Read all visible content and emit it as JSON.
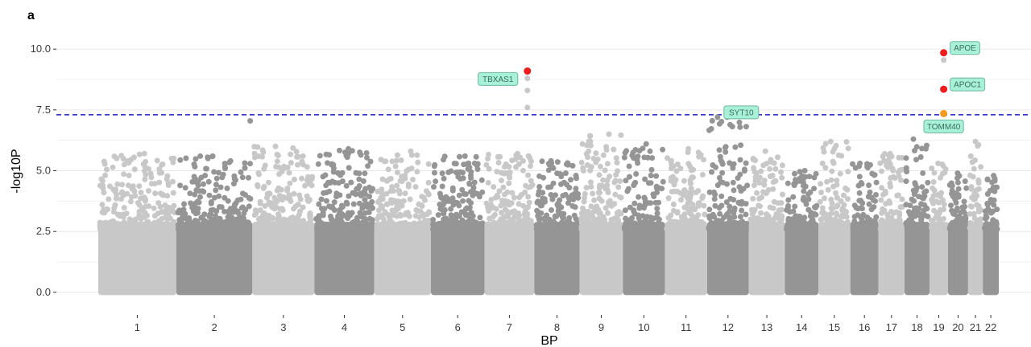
{
  "panel_label": "a",
  "colors": {
    "chrom_odd": "#c8c8c8",
    "chrom_even": "#959595",
    "significant": "#ee1c1c",
    "suggestive": "#f59a1e",
    "threshold_line": "#1f1fc8",
    "label_fill": "#a8f0d8",
    "label_stroke": "#6fb89c",
    "gridline": "#e6e6e6"
  },
  "chart_data": {
    "type": "scatter",
    "title": "",
    "xlabel": "BP",
    "ylabel": "-log10P",
    "ylim": [
      -0.3,
      10.5
    ],
    "y_ticks": [
      0.0,
      2.5,
      5.0,
      7.5,
      10.0
    ],
    "y_tick_labels": [
      "0.0",
      "2.5",
      "5.0",
      "7.5",
      "10.0"
    ],
    "grid": true,
    "legend": "none",
    "significance_threshold": 7.3,
    "chromosomes": [
      {
        "label": "1",
        "length": 249
      },
      {
        "label": "2",
        "length": 243
      },
      {
        "label": "3",
        "length": 198
      },
      {
        "label": "4",
        "length": 191
      },
      {
        "label": "5",
        "length": 181
      },
      {
        "label": "6",
        "length": 171
      },
      {
        "label": "7",
        "length": 159
      },
      {
        "label": "8",
        "length": 145
      },
      {
        "label": "9",
        "length": 138
      },
      {
        "label": "10",
        "length": 134
      },
      {
        "label": "11",
        "length": 135
      },
      {
        "label": "12",
        "length": 133
      },
      {
        "label": "13",
        "length": 115
      },
      {
        "label": "14",
        "length": 107
      },
      {
        "label": "15",
        "length": 102
      },
      {
        "label": "16",
        "length": 90
      },
      {
        "label": "17",
        "length": 83
      },
      {
        "label": "18",
        "length": 80
      },
      {
        "label": "19",
        "length": 59
      },
      {
        "label": "20",
        "length": 64
      },
      {
        "label": "21",
        "length": 47
      },
      {
        "label": "22",
        "length": 51
      }
    ],
    "chrom_max": [
      5.7,
      5.6,
      6.0,
      5.9,
      5.8,
      5.6,
      5.7,
      5.4,
      6.5,
      6.1,
      5.9,
      7.2,
      5.8,
      5.0,
      6.2,
      5.3,
      5.7,
      6.3,
      5.3,
      4.9,
      6.2,
      4.8
    ],
    "highlights": [
      {
        "chrom": "7",
        "pos": 137,
        "y": 9.1,
        "color": "red",
        "label": "TBXAS1",
        "label_side": "left"
      },
      {
        "chrom": "7",
        "pos": 137,
        "y": 8.8,
        "color": "light"
      },
      {
        "chrom": "7",
        "pos": 137,
        "y": 8.3,
        "color": "light"
      },
      {
        "chrom": "7",
        "pos": 137,
        "y": 7.6,
        "color": "light"
      },
      {
        "chrom": "12",
        "pos": 33,
        "y": 7.2,
        "color": "dark",
        "label": "SYT10",
        "label_side": "right"
      },
      {
        "chrom": "2",
        "pos": 236,
        "y": 7.05,
        "color": "dark"
      },
      {
        "chrom": "19",
        "pos": 45,
        "y": 9.85,
        "color": "red",
        "label": "APOE",
        "label_side": "right"
      },
      {
        "chrom": "19",
        "pos": 45,
        "y": 9.55,
        "color": "light"
      },
      {
        "chrom": "19",
        "pos": 45,
        "y": 8.35,
        "color": "red",
        "label": "APOC1",
        "label_side": "right"
      },
      {
        "chrom": "19",
        "pos": 45,
        "y": 7.35,
        "color": "orange",
        "label": "TOMM40",
        "label_side": "below"
      }
    ]
  }
}
